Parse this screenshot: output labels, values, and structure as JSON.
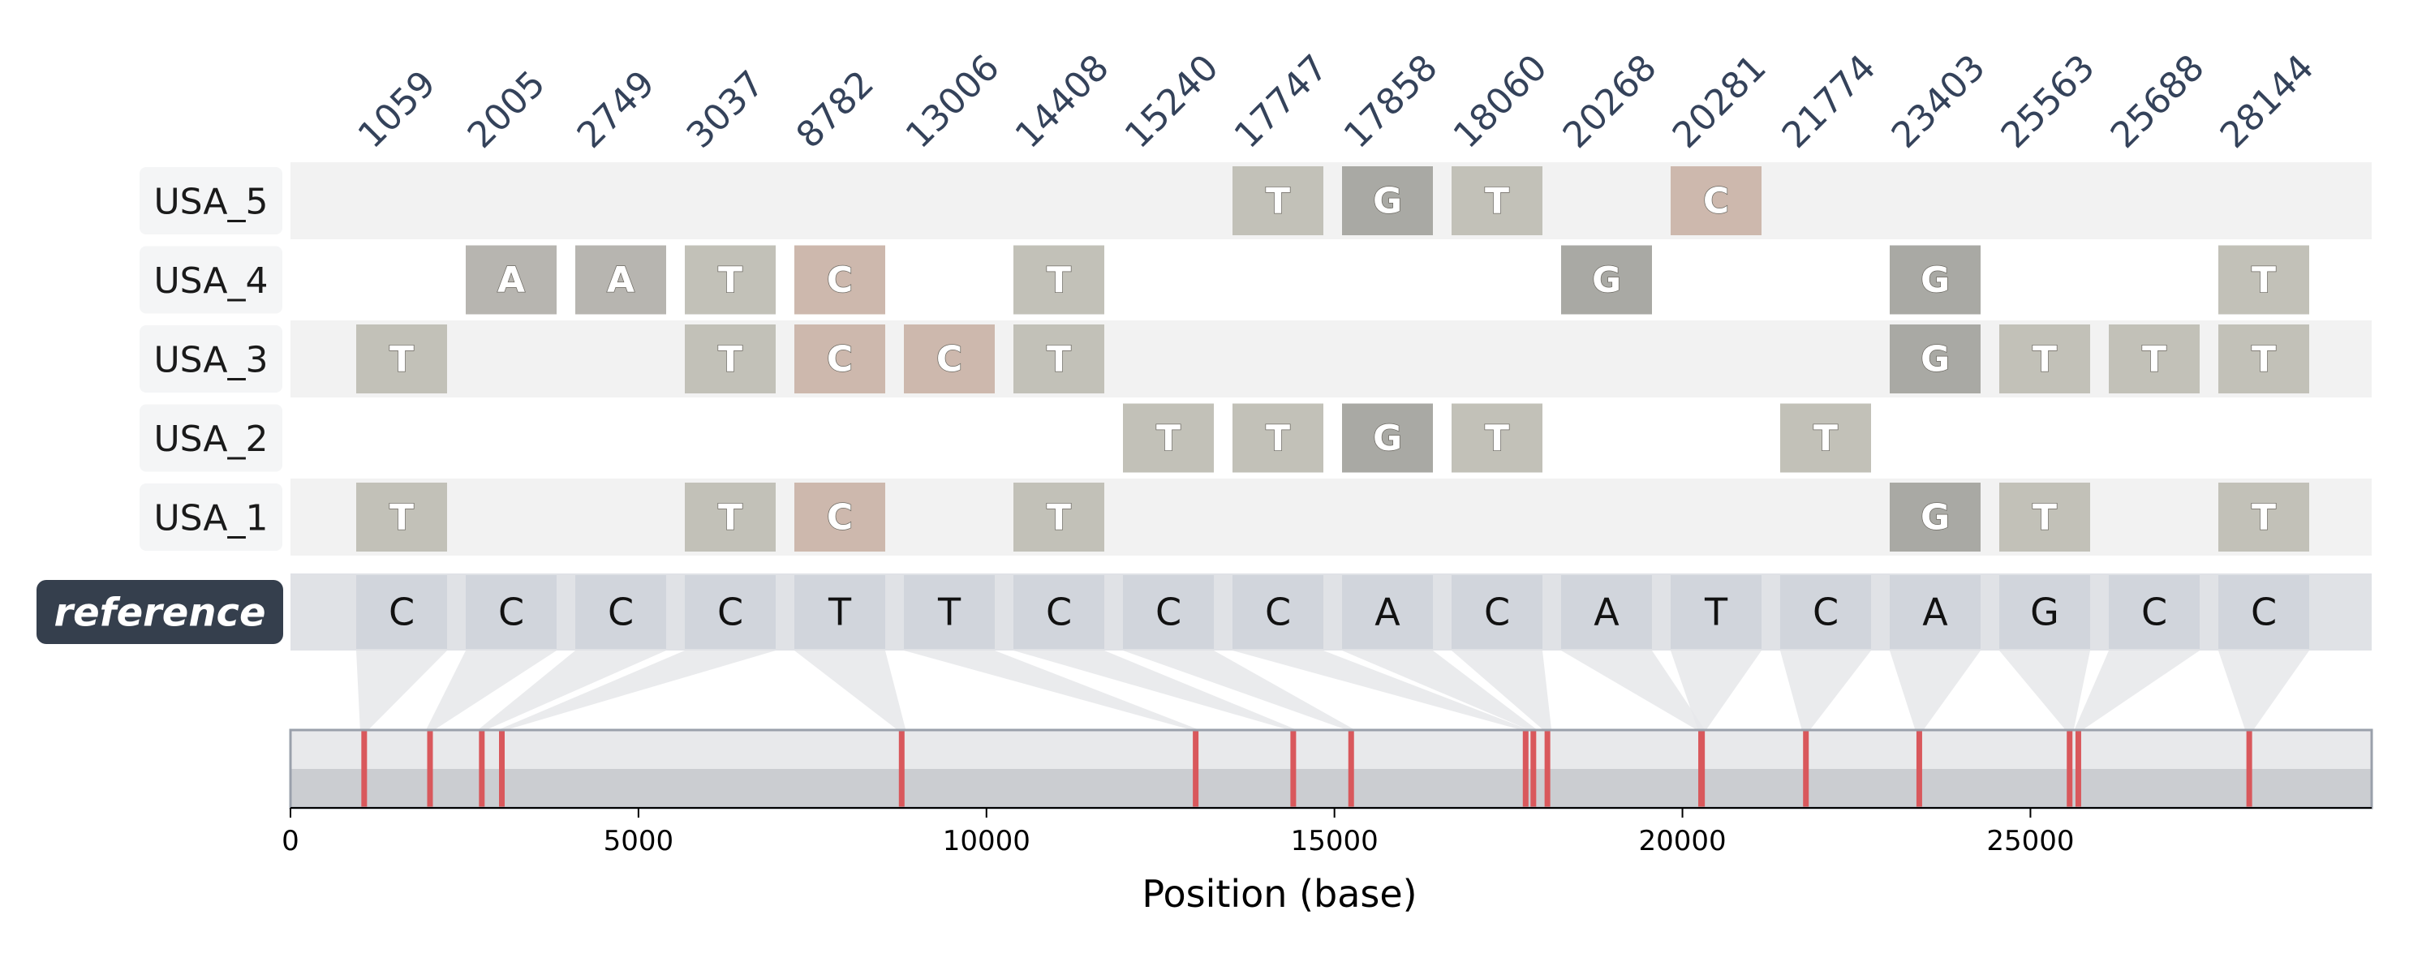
{
  "chart_data": {
    "type": "table",
    "positions": [
      1059,
      2005,
      2749,
      3037,
      8782,
      13006,
      14408,
      15240,
      17747,
      17858,
      18060,
      20268,
      20281,
      21774,
      23403,
      25563,
      25688,
      28144
    ],
    "reference": {
      "label": "reference",
      "bases": [
        "C",
        "C",
        "C",
        "C",
        "T",
        "T",
        "C",
        "C",
        "C",
        "A",
        "C",
        "A",
        "T",
        "C",
        "A",
        "G",
        "C",
        "C"
      ]
    },
    "samples": [
      {
        "name": "USA_5",
        "variants": [
          [
            "17747",
            "T"
          ],
          [
            "17858",
            "G"
          ],
          [
            "18060",
            "T"
          ],
          [
            "20281",
            "C"
          ]
        ]
      },
      {
        "name": "USA_4",
        "variants": [
          [
            "2005",
            "A"
          ],
          [
            "2749",
            "A"
          ],
          [
            "3037",
            "T"
          ],
          [
            "8782",
            "C"
          ],
          [
            "14408",
            "T"
          ],
          [
            "20268",
            "G"
          ],
          [
            "23403",
            "G"
          ],
          [
            "28144",
            "T"
          ]
        ]
      },
      {
        "name": "USA_3",
        "variants": [
          [
            "1059",
            "T"
          ],
          [
            "3037",
            "T"
          ],
          [
            "8782",
            "C"
          ],
          [
            "13006",
            "C"
          ],
          [
            "14408",
            "T"
          ],
          [
            "23403",
            "G"
          ],
          [
            "25563",
            "T"
          ],
          [
            "25688",
            "T"
          ],
          [
            "28144",
            "T"
          ]
        ]
      },
      {
        "name": "USA_2",
        "variants": [
          [
            "15240",
            "T"
          ],
          [
            "17747",
            "T"
          ],
          [
            "17858",
            "G"
          ],
          [
            "18060",
            "T"
          ],
          [
            "21774",
            "T"
          ]
        ]
      },
      {
        "name": "USA_1",
        "variants": [
          [
            "1059",
            "T"
          ],
          [
            "3037",
            "T"
          ],
          [
            "8782",
            "C"
          ],
          [
            "14408",
            "T"
          ],
          [
            "23403",
            "G"
          ],
          [
            "25563",
            "T"
          ],
          [
            "28144",
            "T"
          ]
        ]
      }
    ],
    "xlabel": "Position (base)",
    "xlim": [
      0,
      29903
    ],
    "xticks": [
      0,
      5000,
      10000,
      15000,
      20000,
      25000
    ],
    "base_colors": {
      "A": "#b7b5b0",
      "T": "#c2c1b8",
      "G": "#a9a9a4",
      "C": "#cdb8ad"
    },
    "colors": {
      "row_band": "#f2f2f2",
      "reference_band": "#e0e2e6",
      "reference_cell": "#d1d5dc",
      "reference_badge": "#353f4d",
      "genome_bar_top": "#e8e9eb",
      "genome_bar_bottom": "#cbcdd1",
      "marker": "#d9585c",
      "connector": "#e6e7ea"
    }
  }
}
